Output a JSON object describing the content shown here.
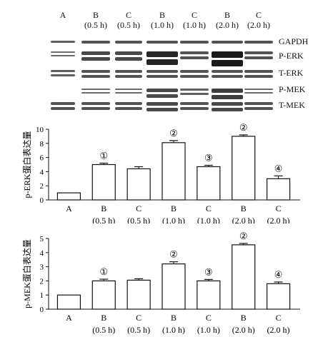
{
  "blot": {
    "lanes": [
      {
        "name": "A",
        "time": ""
      },
      {
        "name": "B",
        "time": "(0.5 h)"
      },
      {
        "name": "C",
        "time": "(0.5 h)"
      },
      {
        "name": "B",
        "time": "(1.0 h)"
      },
      {
        "name": "C",
        "time": "(1.0 h)"
      },
      {
        "name": "B",
        "time": "(2.0 h)"
      },
      {
        "name": "C",
        "time": "(2.0 h)"
      }
    ],
    "proteins": [
      "GAPDH",
      "P-ERK",
      "T-ERK",
      "P-MEK",
      "T-MEK"
    ]
  },
  "chart_data": [
    {
      "type": "bar",
      "ylabel": "p-ERK蛋白表达量",
      "ylim": [
        0,
        10
      ],
      "yticks": [
        0,
        2,
        4,
        6,
        8,
        10
      ],
      "categories": [
        "A",
        "B\n(0.5 h)",
        "C\n(0.5 h)",
        "B\n(1.0 h)",
        "C\n(1.0 h)",
        "B\n(2.0 h)",
        "C\n(2.0 h)"
      ],
      "values": [
        1.0,
        5.0,
        4.4,
        8.1,
        4.7,
        9.0,
        3.0
      ],
      "errors": [
        0,
        0.2,
        0.3,
        0.3,
        0.2,
        0.2,
        0.4
      ],
      "annotations": [
        "",
        "①",
        "",
        "②",
        "③",
        "②",
        "④"
      ]
    },
    {
      "type": "bar",
      "ylabel": "p-MEK蛋白表达量",
      "ylim": [
        0,
        5
      ],
      "yticks": [
        0,
        1,
        2,
        3,
        4,
        5
      ],
      "categories": [
        "A",
        "B\n(0.5 h)",
        "C\n(0.5 h)",
        "B\n(1.0 h)",
        "C\n(1.0 h)",
        "B\n(2.0 h)",
        "C\n(2.0 h)"
      ],
      "values": [
        1.0,
        2.0,
        2.05,
        3.2,
        2.0,
        4.55,
        1.8
      ],
      "errors": [
        0,
        0.12,
        0.1,
        0.15,
        0.1,
        0.1,
        0.12
      ],
      "annotations": [
        "",
        "①",
        "",
        "②",
        "③",
        "②",
        "④"
      ]
    }
  ]
}
